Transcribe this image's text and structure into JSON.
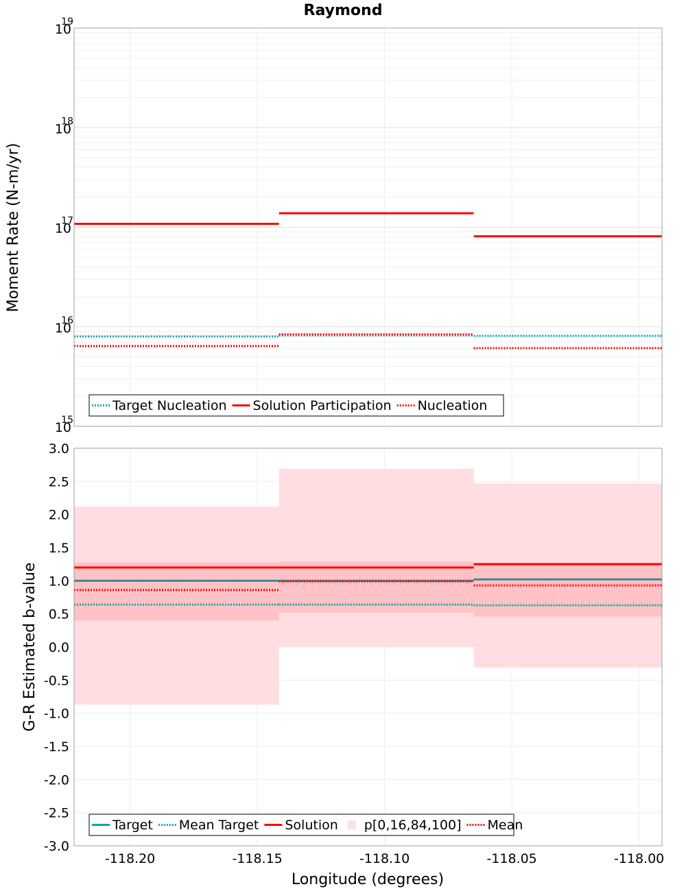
{
  "chart_data": [
    {
      "type": "line",
      "panel": "top",
      "title": "Raymond",
      "xlabel": "",
      "ylabel": "Moment Rate (N-m/yr)",
      "yscale": "log",
      "ylim": [
        1000000000000000.0,
        1e+19
      ],
      "xlim": [
        -118.222,
        -117.991
      ],
      "y_ticks": [
        {
          "base": "10",
          "exp": "15",
          "value": 1000000000000000.0
        },
        {
          "base": "10",
          "exp": "16",
          "value": 1e+16
        },
        {
          "base": "10",
          "exp": "17",
          "value": 1e+17
        },
        {
          "base": "10",
          "exp": "18",
          "value": 1e+18
        },
        {
          "base": "10",
          "exp": "19",
          "value": 1e+19
        }
      ],
      "grid": true,
      "legend_position": "bottom-left",
      "segments": [
        {
          "x_start": -118.222,
          "x_end": -118.1415
        },
        {
          "x_start": -118.1415,
          "x_end": -118.065
        },
        {
          "x_start": -118.065,
          "x_end": -117.991
        }
      ],
      "series": [
        {
          "name": "Target Nucleation",
          "style": "dotted",
          "color": "#00A6A6",
          "values": [
            8000000000000000.0,
            8200000000000000.0,
            8100000000000000.0
          ]
        },
        {
          "name": "Solution Participation",
          "style": "solid",
          "color": "#FF0000",
          "values": [
            1.08e+17,
            1.38e+17,
            8.1e+16
          ]
        },
        {
          "name": "Nucleation",
          "style": "dotted",
          "color": "#FF0000",
          "values": [
            6400000000000000.0,
            8400000000000000.0,
            6100000000000000.0
          ]
        }
      ]
    },
    {
      "type": "line",
      "panel": "bottom",
      "title": "",
      "xlabel": "Longitude (degrees)",
      "ylabel": "G-R Estimated b-value",
      "ylim": [
        -3.0,
        3.0
      ],
      "xlim": [
        -118.222,
        -117.991
      ],
      "x_ticks": [
        "-118.20",
        "-118.15",
        "-118.10",
        "-118.05",
        "-118.00"
      ],
      "x_tick_values": [
        -118.2,
        -118.15,
        -118.1,
        -118.05,
        -118.0
      ],
      "y_ticks": [
        "-3.0",
        "-2.5",
        "-2.0",
        "-1.5",
        "-1.0",
        "-0.5",
        "0.0",
        "0.5",
        "1.0",
        "1.5",
        "2.0",
        "2.5",
        "3.0"
      ],
      "y_tick_values": [
        -3.0,
        -2.5,
        -2.0,
        -1.5,
        -1.0,
        -0.5,
        0.0,
        0.5,
        1.0,
        1.5,
        2.0,
        2.5,
        3.0
      ],
      "grid": true,
      "legend_position": "bottom-left",
      "segments": [
        {
          "x_start": -118.222,
          "x_end": -118.1415
        },
        {
          "x_start": -118.1415,
          "x_end": -118.065
        },
        {
          "x_start": -118.065,
          "x_end": -117.991
        }
      ],
      "percentile_bands": {
        "name": "p[0,16,84,100]",
        "color": "#FF9999",
        "p0": [
          -0.87,
          0.0,
          -0.31
        ],
        "p16": [
          0.4,
          0.52,
          0.46
        ],
        "p84": [
          1.28,
          1.29,
          1.27
        ],
        "p100": [
          2.12,
          2.69,
          2.47
        ]
      },
      "series": [
        {
          "name": "Target",
          "style": "solid",
          "color": "#008C8C",
          "values": [
            1.0,
            1.0,
            1.02
          ]
        },
        {
          "name": "Mean Target",
          "style": "dotted",
          "color": "#00A6A6",
          "values": [
            0.64,
            0.64,
            0.63
          ]
        },
        {
          "name": "Solution",
          "style": "solid",
          "color": "#FF0000",
          "values": [
            1.2,
            1.2,
            1.25
          ]
        },
        {
          "name": "Mean",
          "style": "dotted",
          "color": "#FF0000",
          "values": [
            0.86,
            0.99,
            0.93
          ]
        }
      ]
    }
  ]
}
